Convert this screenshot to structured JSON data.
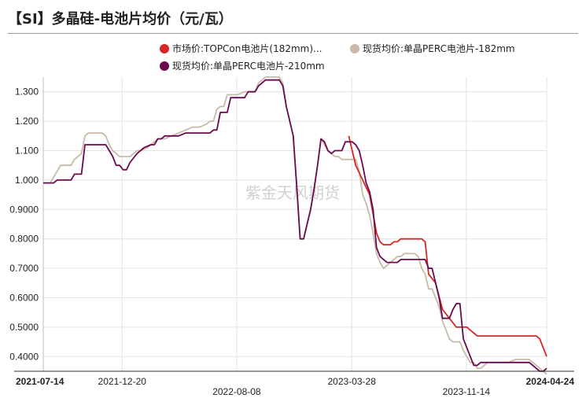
{
  "title": "【SI】多晶硅-电池片均价（元/瓦）",
  "watermark": "紫金天风期货",
  "chart_data": {
    "type": "line",
    "title": "【SI】多晶硅-电池片均价（元/瓦）",
    "ylim": [
      0.35,
      1.35
    ],
    "y_ticks": [
      "0.4000",
      "0.5000",
      "0.6000",
      "0.7000",
      "0.8000",
      "0.9000",
      "1.000",
      "1.100",
      "1.200",
      "1.300"
    ],
    "y_tick_values": [
      0.4,
      0.5,
      0.6,
      0.7,
      0.8,
      0.9,
      1.0,
      1.1,
      1.2,
      1.3
    ],
    "x_range": [
      "2021-07-14",
      "2024-04-24"
    ],
    "x_ticks": [
      {
        "label": "2021-07-14",
        "date": "2021-07-14",
        "row": 0,
        "bold": true
      },
      {
        "label": "2021-12-20",
        "date": "2021-12-20",
        "row": 0,
        "bold": false
      },
      {
        "label": "2022-08-08",
        "date": "2022-08-08",
        "row": 1,
        "bold": false
      },
      {
        "label": "2023-03-28",
        "date": "2023-03-28",
        "row": 0,
        "bold": false
      },
      {
        "label": "2023-11-14",
        "date": "2023-11-14",
        "row": 1,
        "bold": false
      },
      {
        "label": "2024-04-24",
        "date": "2024-04-24",
        "row": 0,
        "bold": true
      }
    ],
    "grid": true,
    "legend_position": "top",
    "series": [
      {
        "name": "市场价:TOPCon电池片(182mm)...",
        "color": "#d62728",
        "points": [
          [
            "2023-03-22",
            1.15
          ],
          [
            "2023-04-05",
            1.05
          ],
          [
            "2023-04-19",
            1.0
          ],
          [
            "2023-05-03",
            0.95
          ],
          [
            "2023-05-17",
            0.82
          ],
          [
            "2023-05-24",
            0.79
          ],
          [
            "2023-05-31",
            0.78
          ],
          [
            "2023-06-14",
            0.78
          ],
          [
            "2023-06-21",
            0.79
          ],
          [
            "2023-06-28",
            0.79
          ],
          [
            "2023-07-05",
            0.8
          ],
          [
            "2023-07-19",
            0.8
          ],
          [
            "2023-08-02",
            0.8
          ],
          [
            "2023-08-16",
            0.8
          ],
          [
            "2023-08-23",
            0.79
          ],
          [
            "2023-08-30",
            0.68
          ],
          [
            "2023-09-13",
            0.65
          ],
          [
            "2023-09-27",
            0.56
          ],
          [
            "2023-10-11",
            0.53
          ],
          [
            "2023-10-25",
            0.5
          ],
          [
            "2023-11-08",
            0.5
          ],
          [
            "2023-11-15",
            0.5
          ],
          [
            "2023-11-29",
            0.48
          ],
          [
            "2023-12-06",
            0.47
          ],
          [
            "2023-12-20",
            0.47
          ],
          [
            "2024-01-10",
            0.47
          ],
          [
            "2024-01-31",
            0.47
          ],
          [
            "2024-02-21",
            0.47
          ],
          [
            "2024-03-13",
            0.47
          ],
          [
            "2024-03-27",
            0.47
          ],
          [
            "2024-04-03",
            0.47
          ],
          [
            "2024-04-10",
            0.46
          ],
          [
            "2024-04-17",
            0.43
          ],
          [
            "2024-04-24",
            0.4
          ]
        ]
      },
      {
        "name": "现货均价:单晶PERC电池片-182mm",
        "color": "#c8b9a8",
        "points": [
          [
            "2021-07-14",
            0.99
          ],
          [
            "2021-07-28",
            0.99
          ],
          [
            "2021-08-04",
            1.01
          ],
          [
            "2021-08-11",
            1.03
          ],
          [
            "2021-08-18",
            1.05
          ],
          [
            "2021-08-25",
            1.05
          ],
          [
            "2021-09-08",
            1.05
          ],
          [
            "2021-09-15",
            1.07
          ],
          [
            "2021-09-22",
            1.08
          ],
          [
            "2021-09-29",
            1.09
          ],
          [
            "2021-10-06",
            1.15
          ],
          [
            "2021-10-13",
            1.16
          ],
          [
            "2021-10-27",
            1.16
          ],
          [
            "2021-11-10",
            1.16
          ],
          [
            "2021-11-17",
            1.15
          ],
          [
            "2021-11-24",
            1.12
          ],
          [
            "2021-12-01",
            1.1
          ],
          [
            "2021-12-08",
            1.09
          ],
          [
            "2021-12-15",
            1.08
          ],
          [
            "2021-12-22",
            1.08
          ],
          [
            "2022-01-05",
            1.08
          ],
          [
            "2022-01-12",
            1.09
          ],
          [
            "2022-01-19",
            1.1
          ],
          [
            "2022-01-26",
            1.1
          ],
          [
            "2022-02-09",
            1.11
          ],
          [
            "2022-02-16",
            1.12
          ],
          [
            "2022-02-23",
            1.13
          ],
          [
            "2022-03-02",
            1.14
          ],
          [
            "2022-03-16",
            1.14
          ],
          [
            "2022-03-30",
            1.15
          ],
          [
            "2022-04-13",
            1.16
          ],
          [
            "2022-04-27",
            1.17
          ],
          [
            "2022-05-11",
            1.18
          ],
          [
            "2022-05-25",
            1.18
          ],
          [
            "2022-06-08",
            1.19
          ],
          [
            "2022-06-15",
            1.2
          ],
          [
            "2022-06-22",
            1.2
          ],
          [
            "2022-06-29",
            1.24
          ],
          [
            "2022-07-06",
            1.25
          ],
          [
            "2022-07-13",
            1.25
          ],
          [
            "2022-07-20",
            1.29
          ],
          [
            "2022-07-27",
            1.29
          ],
          [
            "2022-08-10",
            1.29
          ],
          [
            "2022-08-24",
            1.3
          ],
          [
            "2022-08-31",
            1.3
          ],
          [
            "2022-09-14",
            1.3
          ],
          [
            "2022-09-21",
            1.33
          ],
          [
            "2022-09-28",
            1.34
          ],
          [
            "2022-10-05",
            1.35
          ],
          [
            "2022-10-12",
            1.35
          ],
          [
            "2022-10-26",
            1.35
          ],
          [
            "2022-11-02",
            1.35
          ],
          [
            "2022-11-09",
            1.33
          ],
          [
            "2022-11-16",
            1.25
          ],
          [
            "2022-11-30",
            1.15
          ],
          [
            "2022-12-07",
            0.98
          ],
          [
            "2022-12-14",
            0.8
          ],
          [
            "2022-12-21",
            0.8
          ],
          [
            "2022-12-28",
            0.85
          ],
          [
            "2023-01-04",
            0.9
          ],
          [
            "2023-01-11",
            0.97
          ],
          [
            "2023-01-18",
            1.05
          ],
          [
            "2023-01-25",
            1.14
          ],
          [
            "2023-02-01",
            1.12
          ],
          [
            "2023-02-08",
            1.1
          ],
          [
            "2023-02-15",
            1.09
          ],
          [
            "2023-02-22",
            1.08
          ],
          [
            "2023-03-01",
            1.08
          ],
          [
            "2023-03-08",
            1.07
          ],
          [
            "2023-03-22",
            1.07
          ],
          [
            "2023-04-05",
            1.07
          ],
          [
            "2023-04-12",
            1.03
          ],
          [
            "2023-04-19",
            0.95
          ],
          [
            "2023-04-26",
            0.92
          ],
          [
            "2023-05-03",
            0.88
          ],
          [
            "2023-05-10",
            0.82
          ],
          [
            "2023-05-17",
            0.75
          ],
          [
            "2023-05-24",
            0.72
          ],
          [
            "2023-05-31",
            0.7
          ],
          [
            "2023-06-07",
            0.71
          ],
          [
            "2023-06-14",
            0.72
          ],
          [
            "2023-06-21",
            0.73
          ],
          [
            "2023-06-28",
            0.74
          ],
          [
            "2023-07-05",
            0.74
          ],
          [
            "2023-07-12",
            0.75
          ],
          [
            "2023-07-26",
            0.75
          ],
          [
            "2023-08-02",
            0.75
          ],
          [
            "2023-08-09",
            0.74
          ],
          [
            "2023-08-16",
            0.7
          ],
          [
            "2023-08-23",
            0.68
          ],
          [
            "2023-08-30",
            0.63
          ],
          [
            "2023-09-06",
            0.63
          ],
          [
            "2023-09-13",
            0.6
          ],
          [
            "2023-09-20",
            0.57
          ],
          [
            "2023-09-27",
            0.52
          ],
          [
            "2023-10-04",
            0.49
          ],
          [
            "2023-10-11",
            0.46
          ],
          [
            "2023-10-18",
            0.45
          ],
          [
            "2023-11-01",
            0.45
          ],
          [
            "2023-11-08",
            0.42
          ],
          [
            "2023-11-15",
            0.4
          ],
          [
            "2023-11-22",
            0.38
          ],
          [
            "2023-11-29",
            0.38
          ],
          [
            "2023-12-06",
            0.36
          ],
          [
            "2023-12-13",
            0.36
          ],
          [
            "2023-12-20",
            0.37
          ],
          [
            "2023-12-27",
            0.38
          ],
          [
            "2024-01-10",
            0.38
          ],
          [
            "2024-01-24",
            0.38
          ],
          [
            "2024-02-07",
            0.38
          ],
          [
            "2024-02-21",
            0.39
          ],
          [
            "2024-03-06",
            0.39
          ],
          [
            "2024-03-20",
            0.39
          ],
          [
            "2024-03-27",
            0.38
          ],
          [
            "2024-04-03",
            0.37
          ],
          [
            "2024-04-10",
            0.36
          ],
          [
            "2024-04-17",
            0.35
          ],
          [
            "2024-04-24",
            0.34
          ]
        ]
      },
      {
        "name": "现货均价:单晶PERC电池片-210mm",
        "color": "#6b0a4f",
        "points": [
          [
            "2021-07-14",
            0.99
          ],
          [
            "2021-08-04",
            0.99
          ],
          [
            "2021-08-11",
            1.0
          ],
          [
            "2021-08-25",
            1.0
          ],
          [
            "2021-09-08",
            1.0
          ],
          [
            "2021-09-15",
            1.02
          ],
          [
            "2021-09-29",
            1.02
          ],
          [
            "2021-10-06",
            1.12
          ],
          [
            "2021-10-20",
            1.12
          ],
          [
            "2021-11-03",
            1.12
          ],
          [
            "2021-11-17",
            1.12
          ],
          [
            "2021-11-24",
            1.1
          ],
          [
            "2021-12-01",
            1.08
          ],
          [
            "2021-12-08",
            1.05
          ],
          [
            "2021-12-15",
            1.05
          ],
          [
            "2021-12-22",
            1.035
          ],
          [
            "2021-12-29",
            1.035
          ],
          [
            "2022-01-05",
            1.06
          ],
          [
            "2022-01-19",
            1.09
          ],
          [
            "2022-02-02",
            1.11
          ],
          [
            "2022-02-16",
            1.12
          ],
          [
            "2022-02-23",
            1.12
          ],
          [
            "2022-03-02",
            1.14
          ],
          [
            "2022-03-09",
            1.14
          ],
          [
            "2022-03-16",
            1.15
          ],
          [
            "2022-03-30",
            1.15
          ],
          [
            "2022-04-13",
            1.15
          ],
          [
            "2022-04-27",
            1.16
          ],
          [
            "2022-05-11",
            1.16
          ],
          [
            "2022-05-25",
            1.16
          ],
          [
            "2022-06-08",
            1.16
          ],
          [
            "2022-06-15",
            1.16
          ],
          [
            "2022-06-22",
            1.17
          ],
          [
            "2022-06-29",
            1.17
          ],
          [
            "2022-07-06",
            1.23
          ],
          [
            "2022-07-20",
            1.23
          ],
          [
            "2022-07-27",
            1.28
          ],
          [
            "2022-08-10",
            1.28
          ],
          [
            "2022-08-24",
            1.28
          ],
          [
            "2022-08-31",
            1.3
          ],
          [
            "2022-09-14",
            1.3
          ],
          [
            "2022-09-21",
            1.32
          ],
          [
            "2022-09-28",
            1.33
          ],
          [
            "2022-10-05",
            1.34
          ],
          [
            "2022-10-12",
            1.34
          ],
          [
            "2022-10-26",
            1.34
          ],
          [
            "2022-11-02",
            1.34
          ],
          [
            "2022-11-09",
            1.32
          ],
          [
            "2022-11-16",
            1.25
          ],
          [
            "2022-11-30",
            1.15
          ],
          [
            "2022-12-07",
            0.98
          ],
          [
            "2022-12-14",
            0.8
          ],
          [
            "2022-12-21",
            0.8
          ],
          [
            "2022-12-28",
            0.85
          ],
          [
            "2023-01-04",
            0.9
          ],
          [
            "2023-01-11",
            0.97
          ],
          [
            "2023-01-18",
            1.05
          ],
          [
            "2023-01-25",
            1.14
          ],
          [
            "2023-02-01",
            1.13
          ],
          [
            "2023-02-08",
            1.1
          ],
          [
            "2023-02-15",
            1.09
          ],
          [
            "2023-02-22",
            1.1
          ],
          [
            "2023-03-01",
            1.1
          ],
          [
            "2023-03-08",
            1.1
          ],
          [
            "2023-03-15",
            1.13
          ],
          [
            "2023-03-22",
            1.13
          ],
          [
            "2023-03-29",
            1.13
          ],
          [
            "2023-04-05",
            1.12
          ],
          [
            "2023-04-12",
            1.1
          ],
          [
            "2023-04-19",
            1.05
          ],
          [
            "2023-04-26",
            0.99
          ],
          [
            "2023-05-03",
            0.96
          ],
          [
            "2023-05-10",
            0.9
          ],
          [
            "2023-05-17",
            0.77
          ],
          [
            "2023-05-24",
            0.74
          ],
          [
            "2023-05-31",
            0.73
          ],
          [
            "2023-06-07",
            0.72
          ],
          [
            "2023-06-14",
            0.72
          ],
          [
            "2023-06-21",
            0.72
          ],
          [
            "2023-06-28",
            0.72
          ],
          [
            "2023-07-05",
            0.73
          ],
          [
            "2023-07-19",
            0.73
          ],
          [
            "2023-08-02",
            0.73
          ],
          [
            "2023-08-16",
            0.73
          ],
          [
            "2023-08-23",
            0.73
          ],
          [
            "2023-08-30",
            0.7
          ],
          [
            "2023-09-06",
            0.7
          ],
          [
            "2023-09-13",
            0.65
          ],
          [
            "2023-09-20",
            0.6
          ],
          [
            "2023-09-27",
            0.53
          ],
          [
            "2023-10-11",
            0.53
          ],
          [
            "2023-10-18",
            0.56
          ],
          [
            "2023-10-25",
            0.58
          ],
          [
            "2023-11-01",
            0.58
          ],
          [
            "2023-11-08",
            0.46
          ],
          [
            "2023-11-15",
            0.43
          ],
          [
            "2023-11-22",
            0.4
          ],
          [
            "2023-11-29",
            0.37
          ],
          [
            "2023-12-06",
            0.37
          ],
          [
            "2023-12-13",
            0.38
          ],
          [
            "2023-12-20",
            0.38
          ],
          [
            "2024-01-03",
            0.38
          ],
          [
            "2024-01-17",
            0.38
          ],
          [
            "2024-01-31",
            0.38
          ],
          [
            "2024-02-14",
            0.38
          ],
          [
            "2024-02-28",
            0.38
          ],
          [
            "2024-03-13",
            0.38
          ],
          [
            "2024-03-20",
            0.38
          ],
          [
            "2024-03-27",
            0.37
          ],
          [
            "2024-04-03",
            0.36
          ],
          [
            "2024-04-10",
            0.35
          ],
          [
            "2024-04-17",
            0.35
          ],
          [
            "2024-04-24",
            0.36
          ]
        ]
      }
    ]
  }
}
